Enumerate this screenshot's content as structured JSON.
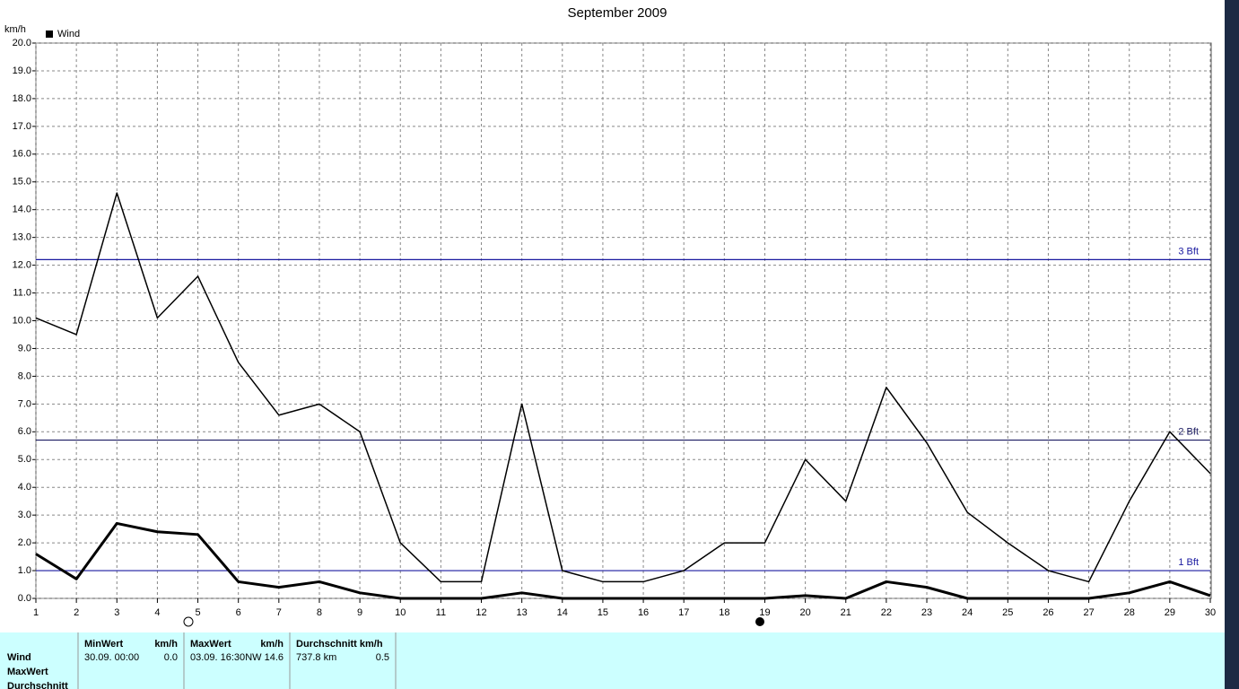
{
  "chart_data": {
    "type": "line",
    "title": "September 2009",
    "y_label": "km/h",
    "x": [
      1,
      2,
      3,
      4,
      5,
      6,
      7,
      8,
      9,
      10,
      11,
      12,
      13,
      14,
      15,
      16,
      17,
      18,
      19,
      20,
      21,
      22,
      23,
      24,
      25,
      26,
      27,
      28,
      29,
      30
    ],
    "xlim": [
      1,
      30
    ],
    "xticks": [
      1,
      2,
      3,
      4,
      5,
      6,
      7,
      8,
      9,
      10,
      11,
      12,
      13,
      14,
      15,
      16,
      17,
      18,
      19,
      20,
      21,
      22,
      23,
      24,
      25,
      26,
      27,
      28,
      29,
      30
    ],
    "ylim": [
      0,
      20
    ],
    "yticks": [
      {
        "value": 0,
        "label": "0.0"
      },
      {
        "value": 1,
        "label": "1.0"
      },
      {
        "value": 2,
        "label": "2.0"
      },
      {
        "value": 3,
        "label": "3.0"
      },
      {
        "value": 4,
        "label": "4.0"
      },
      {
        "value": 5,
        "label": "5.0"
      },
      {
        "value": 6,
        "label": "6.0"
      },
      {
        "value": 7,
        "label": "7.0"
      },
      {
        "value": 8,
        "label": "8.0"
      },
      {
        "value": 9,
        "label": "9.0"
      },
      {
        "value": 10,
        "label": "10.0"
      },
      {
        "value": 11,
        "label": "11.0"
      },
      {
        "value": 12,
        "label": "12.0"
      },
      {
        "value": 13,
        "label": "13.0"
      },
      {
        "value": 14,
        "label": "14.0"
      },
      {
        "value": 15,
        "label": "15.0"
      },
      {
        "value": 16,
        "label": "16.0"
      },
      {
        "value": 17,
        "label": "17.0"
      },
      {
        "value": 18,
        "label": "18.0"
      },
      {
        "value": 19,
        "label": "19.0"
      },
      {
        "value": 20,
        "label": "20.0"
      }
    ],
    "grid": true,
    "legend": "top-left",
    "series": [
      {
        "name": "Wind",
        "color": "#000000",
        "width": 1.5,
        "values": [
          10.1,
          9.5,
          14.6,
          10.1,
          11.6,
          8.5,
          6.6,
          7.0,
          6.0,
          2.0,
          0.6,
          0.6,
          7.0,
          1.0,
          0.6,
          0.6,
          1.0,
          2.0,
          2.0,
          5.0,
          3.5,
          7.6,
          5.6,
          3.1,
          2.0,
          1.0,
          0.6,
          3.5,
          6.0,
          4.5
        ]
      },
      {
        "color": "#000000",
        "width": 3,
        "values": [
          1.6,
          0.7,
          2.7,
          2.4,
          2.3,
          0.6,
          0.4,
          0.6,
          0.2,
          0.0,
          0.0,
          0.0,
          0.2,
          0.0,
          0.0,
          0.0,
          0.0,
          0.0,
          0.0,
          0.1,
          0.0,
          0.6,
          0.4,
          0.0,
          0.0,
          0.0,
          0.0,
          0.2,
          0.6,
          0.1
        ]
      }
    ],
    "reference_lines": [
      {
        "value": 12.2,
        "label": "3 Bft",
        "color": "#1a1aa0"
      },
      {
        "value": 5.7,
        "label": "2 Bft",
        "color": "#1a1a60"
      },
      {
        "value": 1.0,
        "label": "1 Bft",
        "color": "#1a1aa0"
      }
    ]
  },
  "table": {
    "row_labels": [
      "Wind",
      "MaxWert",
      "Durchschnitt"
    ],
    "columns": [
      {
        "header": "MinWert",
        "unit": "km/h",
        "cells": [
          "30.09.  00:00",
          "0.0"
        ]
      },
      {
        "header": "MaxWert",
        "unit": "km/h",
        "cells": [
          "03.09.  16:30",
          "NW 14.6"
        ]
      },
      {
        "header": "Durchschnitt km/h",
        "cells": [
          "737.8 km",
          "0.5"
        ]
      }
    ]
  }
}
